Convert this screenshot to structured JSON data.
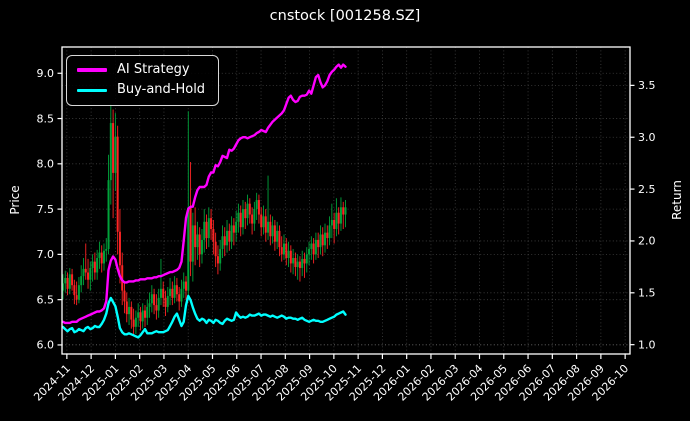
{
  "figure": {
    "background": "#000000",
    "text_color": "#ffffff"
  },
  "chart_data": {
    "type": "candlestick_with_lines",
    "title": "cnstock [001258.SZ]",
    "grid": "dotted",
    "x_axis": {
      "tick_labels": [
        "2024-11",
        "2024-12",
        "2025-01",
        "2025-02",
        "2025-03",
        "2025-04",
        "2025-05",
        "2025-06",
        "2025-07",
        "2025-08",
        "2025-09",
        "2025-10",
        "2025-11",
        "2025-12",
        "2026-01",
        "2026-02",
        "2026-03",
        "2026-04",
        "2026-05",
        "2026-06",
        "2026-07",
        "2026-08",
        "2026-09",
        "2026-10"
      ],
      "tick_rotation_deg": 45
    },
    "left_axis": {
      "label": "Price",
      "ticks": [
        6.0,
        6.5,
        7.0,
        7.5,
        8.0,
        8.5,
        9.0
      ],
      "range": [
        5.9,
        9.29
      ]
    },
    "right_axis": {
      "label": "Return",
      "ticks": [
        1.0,
        1.5,
        2.0,
        2.5,
        3.0,
        3.5
      ],
      "range": [
        0.91,
        3.87
      ]
    },
    "legend": {
      "position": "upper-left",
      "entries": [
        {
          "label": "AI Strategy",
          "color": "#ff00ff"
        },
        {
          "label": "Buy-and-Hold",
          "color": "#00ffff"
        }
      ]
    },
    "series": {
      "candles": {
        "name": "daily-ohlc",
        "axis": "left",
        "up_color": "#00a23a",
        "down_color": "#ff2424",
        "months_start": -0.16,
        "months_end": 11.48,
        "ohlc": [
          [
            6.6,
            6.78,
            6.5,
            6.68
          ],
          [
            6.68,
            6.82,
            6.58,
            6.74
          ],
          [
            6.74,
            6.8,
            6.55,
            6.62
          ],
          [
            6.62,
            6.85,
            6.56,
            6.78
          ],
          [
            6.78,
            6.84,
            6.6,
            6.66
          ],
          [
            6.66,
            6.72,
            6.45,
            6.55
          ],
          [
            6.55,
            6.7,
            6.44,
            6.5
          ],
          [
            6.5,
            6.75,
            6.46,
            6.66
          ],
          [
            6.66,
            6.88,
            6.58,
            6.76
          ],
          [
            6.76,
            6.96,
            6.66,
            6.84
          ],
          [
            6.84,
            7.12,
            6.72,
            6.8
          ],
          [
            6.8,
            6.95,
            6.62,
            6.72
          ],
          [
            6.72,
            6.92,
            6.6,
            6.85
          ],
          [
            6.85,
            7.0,
            6.7,
            6.92
          ],
          [
            6.92,
            7.02,
            6.72,
            6.8
          ],
          [
            6.8,
            7.05,
            6.72,
            6.96
          ],
          [
            6.96,
            7.14,
            6.84,
            7.02
          ],
          [
            7.02,
            7.1,
            6.8,
            6.9
          ],
          [
            6.9,
            7.12,
            6.82,
            7.04
          ],
          [
            7.04,
            7.18,
            6.92,
            7.06
          ],
          [
            7.06,
            8.1,
            7.0,
            7.82
          ],
          [
            7.82,
            8.66,
            7.55,
            8.45
          ],
          [
            8.45,
            8.6,
            7.4,
            7.9
          ],
          [
            7.9,
            8.56,
            7.7,
            8.3
          ],
          [
            8.3,
            8.42,
            7.0,
            7.25
          ],
          [
            7.25,
            7.5,
            6.68,
            6.88
          ],
          [
            6.88,
            7.02,
            6.44,
            6.6
          ],
          [
            6.6,
            6.7,
            6.35,
            6.48
          ],
          [
            6.48,
            6.58,
            6.25,
            6.34
          ],
          [
            6.34,
            6.52,
            6.22,
            6.42
          ],
          [
            6.42,
            6.48,
            6.18,
            6.28
          ],
          [
            6.28,
            6.4,
            6.1,
            6.2
          ],
          [
            6.2,
            6.38,
            6.12,
            6.3
          ],
          [
            6.3,
            6.46,
            6.2,
            6.36
          ],
          [
            6.36,
            6.42,
            6.16,
            6.26
          ],
          [
            6.26,
            6.46,
            6.18,
            6.38
          ],
          [
            6.38,
            6.44,
            6.2,
            6.3
          ],
          [
            6.3,
            6.5,
            6.22,
            6.42
          ],
          [
            6.42,
            6.58,
            6.3,
            6.46
          ],
          [
            6.46,
            6.66,
            6.36,
            6.56
          ],
          [
            6.56,
            6.62,
            6.34,
            6.44
          ],
          [
            6.44,
            6.56,
            6.28,
            6.38
          ],
          [
            6.38,
            6.62,
            6.3,
            6.52
          ],
          [
            6.52,
            6.95,
            6.44,
            6.62
          ],
          [
            6.62,
            6.7,
            6.42,
            6.52
          ],
          [
            6.52,
            6.6,
            6.32,
            6.42
          ],
          [
            6.42,
            6.64,
            6.36,
            6.54
          ],
          [
            6.54,
            6.74,
            6.44,
            6.62
          ],
          [
            6.62,
            6.7,
            6.44,
            6.52
          ],
          [
            6.52,
            6.76,
            6.46,
            6.66
          ],
          [
            6.66,
            6.74,
            6.48,
            6.56
          ],
          [
            6.56,
            6.64,
            6.38,
            6.48
          ],
          [
            6.48,
            6.72,
            6.42,
            6.62
          ],
          [
            6.62,
            6.8,
            6.52,
            6.7
          ],
          [
            6.7,
            6.76,
            6.5,
            6.6
          ],
          [
            6.6,
            8.58,
            6.54,
            7.52
          ],
          [
            7.52,
            8.02,
            6.76,
            6.92
          ],
          [
            6.92,
            7.46,
            6.7,
            7.32
          ],
          [
            7.32,
            7.52,
            6.88,
            7.08
          ],
          [
            7.08,
            7.36,
            6.94,
            7.22
          ],
          [
            7.22,
            7.3,
            6.86,
            7.0
          ],
          [
            7.0,
            7.28,
            6.9,
            7.16
          ],
          [
            7.16,
            7.5,
            7.02,
            7.36
          ],
          [
            7.36,
            7.44,
            7.06,
            7.18
          ],
          [
            7.18,
            7.52,
            7.08,
            7.4
          ],
          [
            7.4,
            7.5,
            7.16,
            7.28
          ],
          [
            7.28,
            7.38,
            7.0,
            7.14
          ],
          [
            7.14,
            7.24,
            6.86,
            6.98
          ],
          [
            6.98,
            7.1,
            6.78,
            6.9
          ],
          [
            6.9,
            7.16,
            6.82,
            7.06
          ],
          [
            7.06,
            7.32,
            6.96,
            7.2
          ],
          [
            7.2,
            7.3,
            6.98,
            7.1
          ],
          [
            7.1,
            7.38,
            7.02,
            7.26
          ],
          [
            7.26,
            7.34,
            7.04,
            7.14
          ],
          [
            7.14,
            7.42,
            7.06,
            7.32
          ],
          [
            7.32,
            7.4,
            7.1,
            7.24
          ],
          [
            7.24,
            7.48,
            7.14,
            7.36
          ],
          [
            7.36,
            7.56,
            7.24,
            7.46
          ],
          [
            7.46,
            7.54,
            7.2,
            7.3
          ],
          [
            7.3,
            7.6,
            7.22,
            7.5
          ],
          [
            7.5,
            7.58,
            7.28,
            7.4
          ],
          [
            7.4,
            7.66,
            7.32,
            7.56
          ],
          [
            7.56,
            7.62,
            7.34,
            7.44
          ],
          [
            7.44,
            7.52,
            7.22,
            7.34
          ],
          [
            7.34,
            7.58,
            7.26,
            7.5
          ],
          [
            7.5,
            7.68,
            7.38,
            7.6
          ],
          [
            7.6,
            7.66,
            7.34,
            7.44
          ],
          [
            7.44,
            7.52,
            7.2,
            7.3
          ],
          [
            7.3,
            7.54,
            7.22,
            7.42
          ],
          [
            7.42,
            7.5,
            7.14,
            7.24
          ],
          [
            7.24,
            7.87,
            7.16,
            7.36
          ],
          [
            7.36,
            7.44,
            7.1,
            7.2
          ],
          [
            7.2,
            7.42,
            7.12,
            7.32
          ],
          [
            7.32,
            7.38,
            7.04,
            7.14
          ],
          [
            7.14,
            7.36,
            7.06,
            7.26
          ],
          [
            7.26,
            7.32,
            6.98,
            7.08
          ],
          [
            7.08,
            7.2,
            6.92,
            7.0
          ],
          [
            7.0,
            7.22,
            6.94,
            7.12
          ],
          [
            7.12,
            7.18,
            6.88,
            6.96
          ],
          [
            6.96,
            7.14,
            6.86,
            7.04
          ],
          [
            7.04,
            7.1,
            6.8,
            6.9
          ],
          [
            6.9,
            7.06,
            6.78,
            6.96
          ],
          [
            6.96,
            7.02,
            6.76,
            6.86
          ],
          [
            6.86,
            7.0,
            6.72,
            6.92
          ],
          [
            6.92,
            6.98,
            6.7,
            6.85
          ],
          [
            6.85,
            7.04,
            6.76,
            6.95
          ],
          [
            6.95,
            7.02,
            6.74,
            6.9
          ],
          [
            6.9,
            7.08,
            6.8,
            7.0
          ],
          [
            7.0,
            7.14,
            6.88,
            7.06
          ],
          [
            7.06,
            7.2,
            6.94,
            7.12
          ],
          [
            7.12,
            7.18,
            6.9,
            7.0
          ],
          [
            7.0,
            7.24,
            6.94,
            7.16
          ],
          [
            7.16,
            7.24,
            6.96,
            7.08
          ],
          [
            7.08,
            7.32,
            7.0,
            7.22
          ],
          [
            7.22,
            7.3,
            6.98,
            7.1
          ],
          [
            7.1,
            7.34,
            7.02,
            7.24
          ],
          [
            7.24,
            7.32,
            7.06,
            7.18
          ],
          [
            7.18,
            7.42,
            7.1,
            7.32
          ],
          [
            7.32,
            7.56,
            7.18,
            7.38
          ],
          [
            7.38,
            7.46,
            7.12,
            7.28
          ],
          [
            7.28,
            7.62,
            7.2,
            7.46
          ],
          [
            7.46,
            7.52,
            7.22,
            7.34
          ],
          [
            7.34,
            7.63,
            7.26,
            7.52
          ],
          [
            7.52,
            7.58,
            7.28,
            7.44
          ],
          [
            7.44,
            7.6,
            7.3,
            7.52
          ]
        ]
      },
      "ai_strategy": {
        "name": "AI Strategy",
        "axis": "right",
        "color": "#ff00ff",
        "values": [
          1.22,
          1.21,
          1.21,
          1.21,
          1.22,
          1.22,
          1.22,
          1.24,
          1.25,
          1.26,
          1.27,
          1.28,
          1.29,
          1.3,
          1.31,
          1.32,
          1.32,
          1.33,
          1.35,
          1.42,
          1.72,
          1.81,
          1.85,
          1.82,
          1.73,
          1.66,
          1.62,
          1.6,
          1.6,
          1.61,
          1.61,
          1.61,
          1.62,
          1.62,
          1.63,
          1.63,
          1.63,
          1.64,
          1.64,
          1.64,
          1.65,
          1.65,
          1.66,
          1.66,
          1.67,
          1.68,
          1.69,
          1.7,
          1.7,
          1.71,
          1.72,
          1.74,
          1.8,
          2.0,
          2.22,
          2.31,
          2.33,
          2.33,
          2.42,
          2.49,
          2.52,
          2.52,
          2.52,
          2.54,
          2.62,
          2.66,
          2.66,
          2.73,
          2.72,
          2.76,
          2.82,
          2.81,
          2.8,
          2.88,
          2.87,
          2.89,
          2.93,
          2.97,
          2.99,
          3.0,
          3.0,
          2.99,
          3.0,
          3.01,
          3.02,
          3.04,
          3.05,
          3.07,
          3.06,
          3.05,
          3.09,
          3.12,
          3.15,
          3.17,
          3.19,
          3.21,
          3.23,
          3.26,
          3.32,
          3.38,
          3.4,
          3.36,
          3.34,
          3.35,
          3.39,
          3.4,
          3.4,
          3.41,
          3.45,
          3.42,
          3.5,
          3.58,
          3.6,
          3.53,
          3.48,
          3.5,
          3.54,
          3.6,
          3.63,
          3.65,
          3.68,
          3.7,
          3.67,
          3.7,
          3.68
        ]
      },
      "buy_and_hold": {
        "name": "Buy-and-Hold",
        "axis": "right",
        "color": "#00ffff",
        "values": [
          1.17,
          1.15,
          1.13,
          1.15,
          1.16,
          1.12,
          1.13,
          1.15,
          1.14,
          1.13,
          1.16,
          1.17,
          1.15,
          1.16,
          1.18,
          1.17,
          1.17,
          1.2,
          1.24,
          1.3,
          1.4,
          1.45,
          1.41,
          1.37,
          1.27,
          1.16,
          1.12,
          1.1,
          1.1,
          1.11,
          1.1,
          1.09,
          1.08,
          1.07,
          1.09,
          1.12,
          1.15,
          1.11,
          1.11,
          1.11,
          1.12,
          1.13,
          1.12,
          1.12,
          1.12,
          1.13,
          1.14,
          1.18,
          1.22,
          1.27,
          1.3,
          1.24,
          1.18,
          1.22,
          1.38,
          1.47,
          1.43,
          1.36,
          1.3,
          1.25,
          1.23,
          1.25,
          1.24,
          1.21,
          1.24,
          1.23,
          1.21,
          1.24,
          1.23,
          1.21,
          1.2,
          1.23,
          1.25,
          1.24,
          1.23,
          1.24,
          1.31,
          1.28,
          1.26,
          1.27,
          1.26,
          1.27,
          1.29,
          1.28,
          1.28,
          1.29,
          1.3,
          1.28,
          1.29,
          1.29,
          1.28,
          1.27,
          1.28,
          1.27,
          1.26,
          1.27,
          1.28,
          1.27,
          1.25,
          1.26,
          1.26,
          1.25,
          1.25,
          1.24,
          1.25,
          1.26,
          1.24,
          1.23,
          1.22,
          1.23,
          1.24,
          1.23,
          1.23,
          1.22,
          1.22,
          1.23,
          1.24,
          1.25,
          1.26,
          1.27,
          1.29,
          1.3,
          1.31,
          1.32,
          1.29
        ]
      }
    }
  }
}
